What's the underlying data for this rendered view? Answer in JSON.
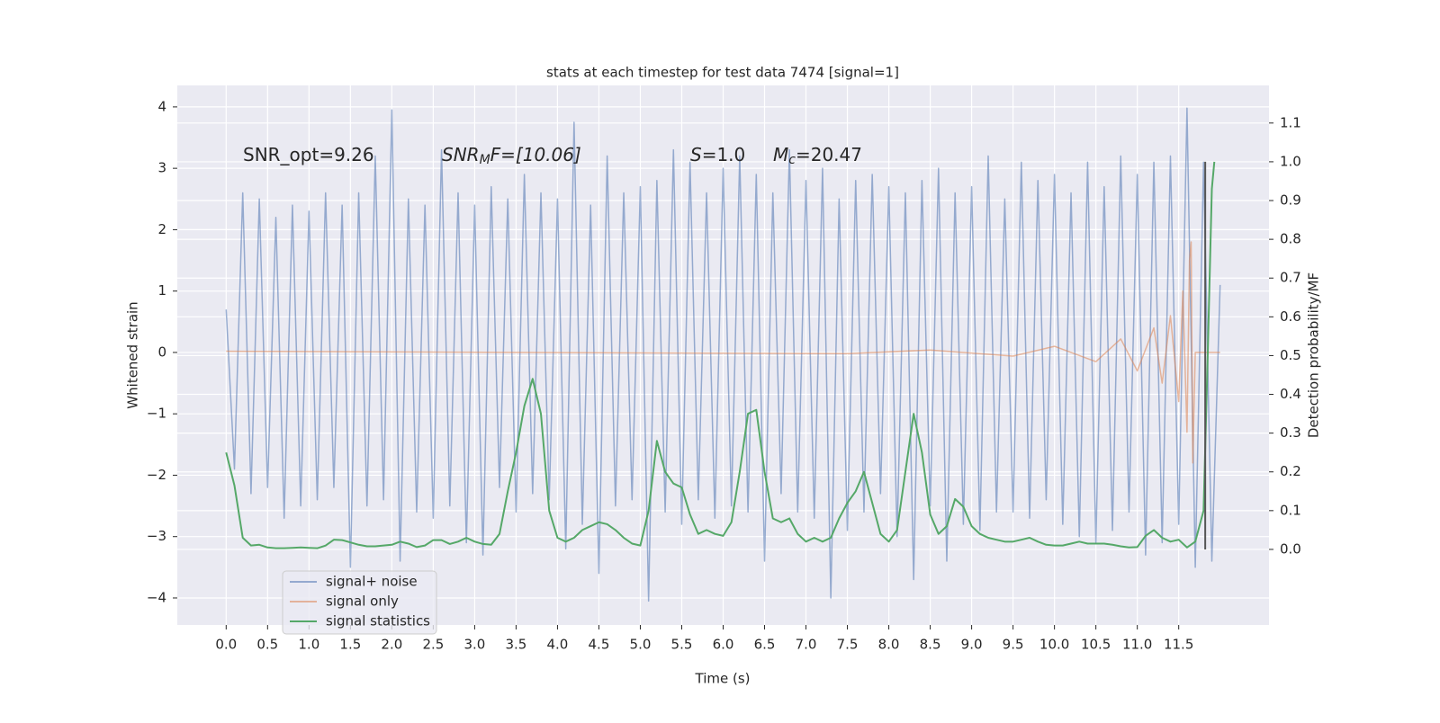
{
  "chart_data": {
    "type": "line",
    "title": "stats at each timestep for test data 7474 [signal=1]",
    "xlabel": "Time (s)",
    "ylabel": "Whitened strain",
    "y2label": "Detection probability/MF",
    "xlim": [
      -0.59,
      12.59
    ],
    "ylim": [
      -4.44,
      4.35
    ],
    "y2lim": [
      -0.195,
      1.197
    ],
    "xticks": [
      {
        "value": 0,
        "label": "0.0"
      },
      {
        "value": 0.5,
        "label": "0.5"
      },
      {
        "value": 1,
        "label": "1.0"
      },
      {
        "value": 1.5,
        "label": "1.5"
      },
      {
        "value": 2,
        "label": "2.0"
      },
      {
        "value": 2.5,
        "label": "2.5"
      },
      {
        "value": 3,
        "label": "3.0"
      },
      {
        "value": 3.5,
        "label": "3.5"
      },
      {
        "value": 4,
        "label": "4.0"
      },
      {
        "value": 4.5,
        "label": "4.5"
      },
      {
        "value": 5,
        "label": "5.0"
      },
      {
        "value": 5.5,
        "label": "5.5"
      },
      {
        "value": 6,
        "label": "6.0"
      },
      {
        "value": 6.5,
        "label": "6.5"
      },
      {
        "value": 7,
        "label": "7.0"
      },
      {
        "value": 7.5,
        "label": "7.5"
      },
      {
        "value": 8,
        "label": "8.0"
      },
      {
        "value": 8.5,
        "label": "8.5"
      },
      {
        "value": 9,
        "label": "9.0"
      },
      {
        "value": 9.5,
        "label": "9.5"
      },
      {
        "value": 10,
        "label": "10.0"
      },
      {
        "value": 10.5,
        "label": "10.5"
      },
      {
        "value": 11,
        "label": "11.0"
      },
      {
        "value": 11.5,
        "label": "11.5"
      }
    ],
    "yticks": [
      {
        "value": -4,
        "label": "−4"
      },
      {
        "value": -3,
        "label": "−3"
      },
      {
        "value": -2,
        "label": "−2"
      },
      {
        "value": -1,
        "label": "−1"
      },
      0,
      1,
      2,
      3,
      4
    ],
    "y2ticks": [
      {
        "value": 0,
        "label": "0.0"
      },
      {
        "value": 0.1,
        "label": "0.1"
      },
      {
        "value": 0.2,
        "label": "0.2"
      },
      {
        "value": 0.3,
        "label": "0.3"
      },
      {
        "value": 0.4,
        "label": "0.4"
      },
      {
        "value": 0.5,
        "label": "0.5"
      },
      {
        "value": 0.6,
        "label": "0.6"
      },
      {
        "value": 0.7,
        "label": "0.7"
      },
      {
        "value": 0.8,
        "label": "0.8"
      },
      {
        "value": 0.9,
        "label": "0.9"
      },
      {
        "value": 1,
        "label": "1.0"
      },
      {
        "value": 1.1,
        "label": "1.1"
      }
    ],
    "grid": true,
    "legend": "lower left",
    "annotations": [
      {
        "main": "SNR_opt=9.26"
      },
      {
        "main": "SNR",
        "sub": "M",
        "tail": "F=[10.06]"
      },
      {
        "main": "S",
        "tail": "=1.0"
      },
      {
        "main": "M",
        "sub": "c",
        "tail": "=20.47"
      }
    ],
    "vline": {
      "x": 11.82,
      "y2": [
        0,
        1
      ]
    },
    "series": [
      {
        "name": "signal+ noise",
        "color": "#4c72b0",
        "axis": "y",
        "x": [
          0,
          0.1,
          0.2,
          0.3,
          0.4,
          0.5,
          0.6,
          0.7,
          0.8,
          0.9,
          1,
          1.1,
          1.2,
          1.3,
          1.4,
          1.5,
          1.6,
          1.7,
          1.8,
          1.9,
          2,
          2.1,
          2.2,
          2.3,
          2.4,
          2.5,
          2.6,
          2.7,
          2.8,
          2.9,
          3,
          3.1,
          3.2,
          3.3,
          3.4,
          3.5,
          3.6,
          3.7,
          3.8,
          3.9,
          4,
          4.1,
          4.2,
          4.3,
          4.4,
          4.5,
          4.6,
          4.7,
          4.8,
          4.9,
          5,
          5.1,
          5.2,
          5.3,
          5.4,
          5.5,
          5.6,
          5.7,
          5.8,
          5.9,
          6,
          6.1,
          6.2,
          6.3,
          6.4,
          6.5,
          6.6,
          6.7,
          6.8,
          6.9,
          7,
          7.1,
          7.2,
          7.3,
          7.4,
          7.5,
          7.6,
          7.7,
          7.8,
          7.9,
          8,
          8.1,
          8.2,
          8.3,
          8.4,
          8.5,
          8.6,
          8.7,
          8.8,
          8.9,
          9,
          9.1,
          9.2,
          9.3,
          9.4,
          9.5,
          9.6,
          9.7,
          9.8,
          9.9,
          10,
          10.1,
          10.2,
          10.3,
          10.4,
          10.5,
          10.6,
          10.7,
          10.8,
          10.9,
          11,
          11.1,
          11.2,
          11.3,
          11.4,
          11.5,
          11.6,
          11.7,
          11.8,
          11.9,
          12
        ],
        "values": [
          0.7,
          -1.9,
          2.6,
          -2.3,
          2.5,
          -2.2,
          2.2,
          -2.7,
          2.4,
          -2.5,
          2.3,
          -2.4,
          2.6,
          -2.2,
          2.4,
          -3.5,
          2.6,
          -2.5,
          3.2,
          -2.4,
          3.95,
          -3.4,
          2.5,
          -2.6,
          2.4,
          -2.7,
          3.3,
          -2.5,
          2.6,
          -3.1,
          2.4,
          -3.3,
          2.7,
          -2.2,
          2.5,
          -2.6,
          2.9,
          -2.3,
          2.6,
          -2.4,
          2.5,
          -3.2,
          3.75,
          -2.8,
          2.4,
          -3.6,
          3.2,
          -2.5,
          2.6,
          -2.4,
          2.7,
          -4.05,
          2.8,
          -2.6,
          3.3,
          -2.8,
          3.1,
          -2.4,
          2.6,
          -2.7,
          3.0,
          -2.5,
          3.2,
          -2.6,
          2.9,
          -3.4,
          2.6,
          -2.3,
          3.3,
          -2.6,
          2.8,
          -2.7,
          3.0,
          -4.0,
          2.5,
          -2.9,
          2.8,
          -2.6,
          2.9,
          -2.3,
          2.7,
          -3.0,
          2.6,
          -3.7,
          2.8,
          -2.5,
          3.0,
          -3.4,
          2.6,
          -2.8,
          2.7,
          -2.9,
          3.2,
          -2.6,
          2.5,
          -2.6,
          3.1,
          -2.7,
          2.8,
          -2.4,
          2.9,
          -2.8,
          2.6,
          -3.0,
          3.1,
          -3.1,
          2.7,
          -2.9,
          3.2,
          -2.6,
          2.9,
          -3.3,
          3.1,
          -3.1,
          3.2,
          -2.8,
          3.98,
          -3.5,
          3.1,
          -3.4,
          1.1
        ]
      },
      {
        "name": "signal only",
        "color": "#dd8452",
        "axis": "y",
        "x": [
          0,
          7.5,
          8.5,
          9.5,
          10,
          10.5,
          10.8,
          11,
          11.2,
          11.3,
          11.4,
          11.5,
          11.55,
          11.6,
          11.63,
          11.65,
          11.67,
          11.7,
          12
        ],
        "values": [
          0.02,
          -0.02,
          0.04,
          -0.06,
          0.1,
          -0.15,
          0.22,
          -0.3,
          0.4,
          -0.5,
          0.6,
          -0.8,
          1.0,
          -1.3,
          1.5,
          1.8,
          -1.8,
          0,
          0
        ]
      },
      {
        "name": "signal statistics",
        "color": "#55a868",
        "axis": "y2",
        "x": [
          0,
          0.1,
          0.2,
          0.3,
          0.4,
          0.5,
          0.6,
          0.7,
          0.8,
          0.9,
          1,
          1.1,
          1.2,
          1.3,
          1.4,
          1.5,
          1.6,
          1.7,
          1.8,
          1.9,
          2,
          2.1,
          2.2,
          2.3,
          2.4,
          2.5,
          2.6,
          2.7,
          2.8,
          2.9,
          3,
          3.1,
          3.2,
          3.3,
          3.4,
          3.5,
          3.6,
          3.7,
          3.8,
          3.9,
          4,
          4.1,
          4.2,
          4.3,
          4.4,
          4.5,
          4.6,
          4.7,
          4.8,
          4.9,
          5,
          5.1,
          5.2,
          5.3,
          5.4,
          5.5,
          5.6,
          5.7,
          5.8,
          5.9,
          6,
          6.1,
          6.2,
          6.3,
          6.4,
          6.5,
          6.6,
          6.7,
          6.8,
          6.9,
          7,
          7.1,
          7.2,
          7.3,
          7.4,
          7.5,
          7.6,
          7.7,
          7.8,
          7.9,
          8,
          8.1,
          8.2,
          8.3,
          8.4,
          8.5,
          8.6,
          8.7,
          8.8,
          8.9,
          9,
          9.1,
          9.2,
          9.3,
          9.4,
          9.5,
          9.6,
          9.7,
          9.8,
          9.9,
          10,
          10.1,
          10.2,
          10.3,
          10.4,
          10.5,
          10.6,
          10.7,
          10.8,
          10.9,
          11,
          11.1,
          11.2,
          11.3,
          11.4,
          11.5,
          11.6,
          11.7,
          11.8,
          11.85,
          11.9,
          11.93
        ],
        "values": [
          0.25,
          0.165,
          0.03,
          0.01,
          0.012,
          0.005,
          0.003,
          0.003,
          0.004,
          0.005,
          0.004,
          0.003,
          0.01,
          0.025,
          0.024,
          0.018,
          0.012,
          0.008,
          0.008,
          0.01,
          0.012,
          0.02,
          0.015,
          0.006,
          0.01,
          0.024,
          0.024,
          0.014,
          0.02,
          0.03,
          0.02,
          0.014,
          0.012,
          0.04,
          0.15,
          0.25,
          0.37,
          0.44,
          0.35,
          0.1,
          0.03,
          0.02,
          0.03,
          0.05,
          0.06,
          0.07,
          0.065,
          0.05,
          0.03,
          0.015,
          0.01,
          0.1,
          0.28,
          0.2,
          0.17,
          0.16,
          0.09,
          0.04,
          0.05,
          0.04,
          0.035,
          0.07,
          0.2,
          0.35,
          0.36,
          0.2,
          0.08,
          0.07,
          0.08,
          0.04,
          0.02,
          0.03,
          0.02,
          0.03,
          0.08,
          0.12,
          0.15,
          0.2,
          0.12,
          0.04,
          0.02,
          0.05,
          0.2,
          0.35,
          0.25,
          0.09,
          0.04,
          0.06,
          0.13,
          0.11,
          0.06,
          0.04,
          0.03,
          0.025,
          0.02,
          0.02,
          0.025,
          0.03,
          0.02,
          0.012,
          0.01,
          0.01,
          0.015,
          0.02,
          0.015,
          0.015,
          0.015,
          0.012,
          0.008,
          0.005,
          0.006,
          0.035,
          0.05,
          0.03,
          0.02,
          0.025,
          0.005,
          0.02,
          0.1,
          0.5,
          0.93,
          1.0
        ]
      }
    ]
  }
}
